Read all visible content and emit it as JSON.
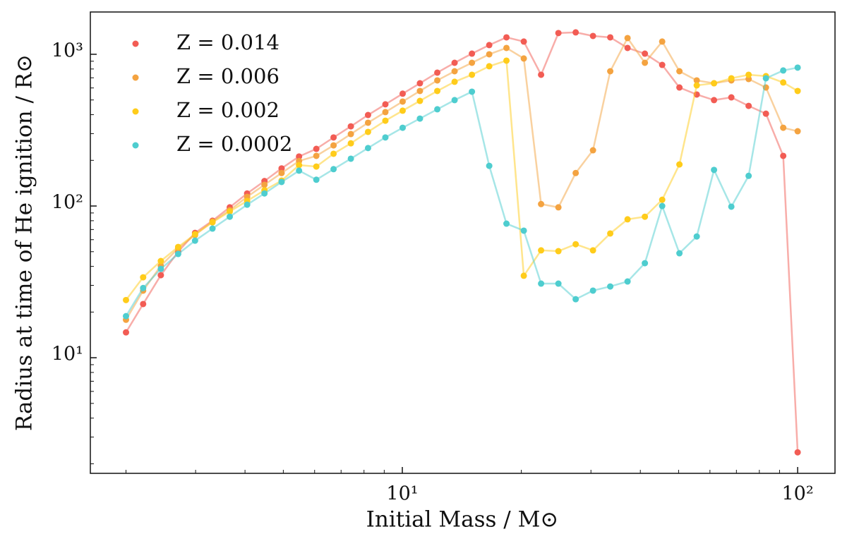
{
  "chart_data": {
    "type": "line",
    "xlabel": "Initial Mass / M⊙",
    "ylabel": "Radius at time of He ignition / R⊙",
    "xscale": "log",
    "yscale": "log",
    "xlim": [
      1.625,
      124.3
    ],
    "ylim": [
      1.73,
      1900
    ],
    "xticks": [
      {
        "value": 10,
        "label": "10¹"
      },
      {
        "value": 100,
        "label": "10²"
      }
    ],
    "yticks": [
      {
        "value": 10,
        "label": "10¹"
      },
      {
        "value": 100,
        "label": "10²"
      },
      {
        "value": 1000,
        "label": "10³"
      }
    ],
    "xminorticks": [
      2,
      3,
      4,
      5,
      6,
      7,
      8,
      9,
      20,
      30,
      40,
      50,
      60,
      70,
      80,
      90
    ],
    "yminorticks": [
      2,
      3,
      4,
      5,
      6,
      7,
      8,
      9,
      20,
      30,
      40,
      50,
      60,
      70,
      80,
      90,
      200,
      300,
      400,
      500,
      600,
      700,
      800,
      900
    ],
    "legend": "upper left",
    "x": [
      2.0,
      2.21,
      2.45,
      2.71,
      2.99,
      3.31,
      3.66,
      4.05,
      4.48,
      4.95,
      5.48,
      6.06,
      6.7,
      7.41,
      8.19,
      9.06,
      10.02,
      11.08,
      12.26,
      13.56,
      15.0,
      16.59,
      18.34,
      20.29,
      22.44,
      24.82,
      27.45,
      30.36,
      33.57,
      37.13,
      41.07,
      45.43,
      50.23,
      55.56,
      61.44,
      67.96,
      75.16,
      83.13,
      91.94,
      100
    ],
    "series": [
      {
        "name": "Z = 0.014",
        "color": "#f25c54",
        "values": [
          14.7,
          22.6,
          35,
          50,
          66.5,
          80,
          98,
          121,
          146,
          177,
          212,
          238,
          283,
          335,
          398,
          468,
          550,
          644,
          757,
          879,
          1010,
          1150,
          1293,
          1213,
          733,
          1380,
          1394,
          1321,
          1293,
          1101,
          1010,
          851,
          604,
          543,
          499,
          520,
          457,
          406,
          214,
          2.38
        ]
      },
      {
        "name": "Z = 0.006",
        "color": "#f4a340",
        "values": [
          17.8,
          27.7,
          40.3,
          52.6,
          64.4,
          79,
          93.8,
          115,
          138,
          165,
          198,
          214,
          251,
          298,
          354,
          416,
          488,
          573,
          673,
          773,
          879,
          1000,
          1101,
          938,
          103,
          98,
          165,
          233,
          773,
          1279,
          879,
          1213,
          773,
          673,
          644,
          673,
          687,
          604,
          328,
          311
        ]
      },
      {
        "name": "Z = 0.002",
        "color": "#ffcc1a",
        "values": [
          24,
          33.9,
          43.4,
          53.7,
          65.2,
          78,
          92,
          108,
          127,
          147,
          186,
          182,
          221,
          259,
          308,
          365,
          425,
          493,
          573,
          659,
          733,
          834,
          908,
          34.7,
          51,
          50.4,
          56,
          51,
          65.9,
          81.7,
          85,
          110,
          188,
          624,
          644,
          695,
          733,
          718,
          652,
          573
        ]
      },
      {
        "name": "Z = 0.0002",
        "color": "#4ecdcf",
        "values": [
          18.8,
          28.8,
          38.5,
          48.3,
          59.1,
          71,
          85,
          102,
          121,
          144,
          171,
          149,
          175,
          205,
          241,
          283,
          328,
          377,
          434,
          499,
          567,
          184,
          76.5,
          68.8,
          30.8,
          30.8,
          24.3,
          27.7,
          29.5,
          31.8,
          42,
          100,
          48.8,
          63,
          173,
          99,
          158,
          695,
          782,
          817
        ]
      }
    ]
  }
}
